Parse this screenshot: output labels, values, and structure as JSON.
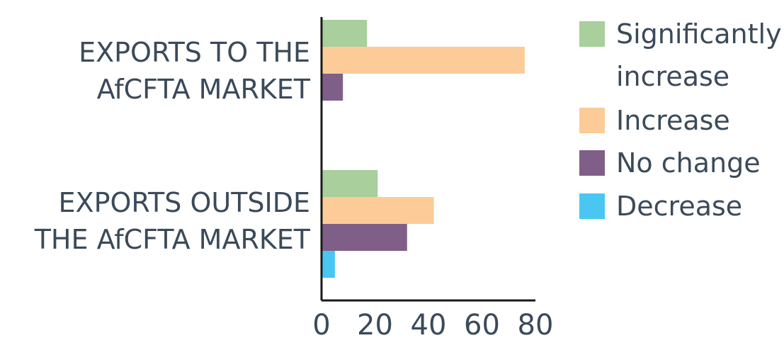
{
  "chart_data": {
    "type": "bar",
    "orientation": "horizontal",
    "categories": [
      [
        "EXPORTS TO THE",
        "AfCFTA MARKET"
      ],
      [
        "EXPORTS OUTSIDE",
        "THE AfCFTA MARKET"
      ]
    ],
    "series": [
      {
        "name": "Significantly increase",
        "color": "#a8cf9c",
        "values": [
          17,
          21
        ]
      },
      {
        "name": "Increase",
        "color": "#fccb98",
        "values": [
          76,
          42
        ]
      },
      {
        "name": "No change",
        "color": "#7f5f87",
        "values": [
          8,
          32
        ]
      },
      {
        "name": "Decrease",
        "color": "#49c7f2",
        "values": [
          0,
          5
        ]
      }
    ],
    "legend_lines": [
      [
        "Significantly",
        "increase"
      ],
      [
        "Increase"
      ],
      [
        "No change"
      ],
      [
        "Decrease"
      ]
    ],
    "xlim": [
      0,
      80
    ],
    "xticks": [
      "0",
      "20",
      "40",
      "60",
      "80"
    ],
    "grid": false,
    "legend_position": "right"
  }
}
